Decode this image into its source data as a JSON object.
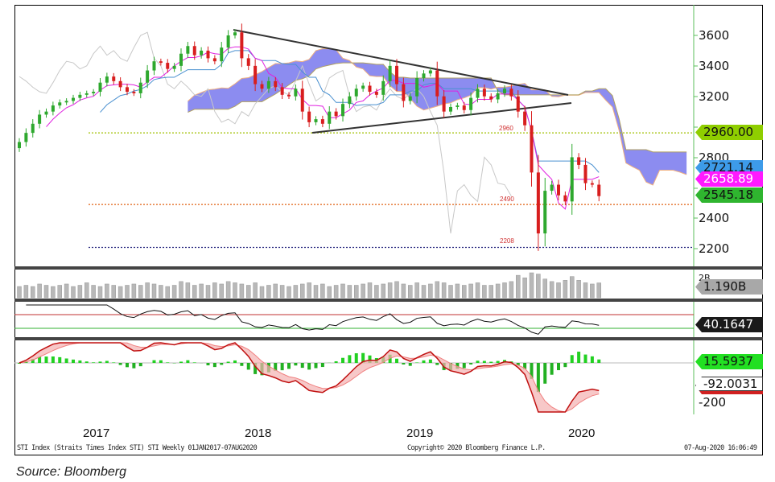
{
  "chart_data": {
    "type": "candlestick",
    "instrument": "STI Index (Straits Times Index STI) STI  Weekly 01JAN2017-07AUG2020",
    "copyright": "Copyright© 2020 Bloomberg Finance L.P.",
    "timestamp": "07-Aug-2020 16:06:49",
    "source": "Source: Bloomberg",
    "x_tick_labels": [
      "2017",
      "2018",
      "2019",
      "2020"
    ],
    "y_tick_labels": [
      "3600",
      "3400",
      "3200",
      "2800",
      "2400",
      "2200"
    ],
    "ylim": [
      2150,
      3680
    ],
    "grid": false,
    "sampling": "semi-monthly closes (approximate, read from chart)",
    "closes": [
      2900,
      2960,
      3020,
      3080,
      3100,
      3140,
      3160,
      3170,
      3190,
      3210,
      3220,
      3230,
      3290,
      3330,
      3300,
      3260,
      3230,
      3220,
      3290,
      3370,
      3430,
      3420,
      3380,
      3400,
      3480,
      3530,
      3470,
      3500,
      3450,
      3430,
      3520,
      3600,
      3620,
      3450,
      3400,
      3280,
      3250,
      3300,
      3260,
      3210,
      3200,
      3250,
      3100,
      3030,
      3050,
      3020,
      3100,
      3070,
      3150,
      3200,
      3250,
      3270,
      3230,
      3210,
      3300,
      3400,
      3280,
      3170,
      3200,
      3320,
      3350,
      3370,
      3200,
      3100,
      3130,
      3140,
      3110,
      3190,
      3250,
      3200,
      3180,
      3220,
      3250,
      3200,
      3100,
      3010,
      2700,
      2300,
      2580,
      2620,
      2550,
      2510,
      2800,
      2750,
      2630,
      2620,
      2545
    ],
    "volume_billions": [
      0.9,
      1.0,
      0.9,
      1.1,
      1.0,
      0.9,
      1.0,
      1.1,
      0.9,
      1.0,
      1.2,
      1.0,
      0.9,
      1.1,
      1.0,
      0.9,
      1.0,
      1.1,
      1.0,
      1.2,
      1.1,
      1.0,
      0.9,
      1.0,
      1.3,
      1.2,
      1.0,
      1.1,
      1.0,
      1.2,
      1.1,
      1.3,
      1.2,
      1.1,
      1.0,
      1.2,
      0.9,
      1.0,
      1.1,
      1.0,
      0.9,
      1.0,
      1.1,
      1.2,
      1.0,
      1.1,
      0.9,
      1.0,
      1.1,
      1.0,
      1.0,
      1.1,
      1.2,
      1.0,
      1.1,
      1.2,
      1.3,
      1.1,
      1.0,
      1.2,
      1.0,
      1.1,
      1.3,
      1.2,
      1.0,
      1.1,
      1.0,
      1.1,
      1.2,
      1.0,
      1.0,
      1.1,
      1.2,
      1.3,
      1.8,
      1.6,
      2.0,
      1.9,
      1.5,
      1.3,
      1.2,
      1.4,
      1.7,
      1.4,
      1.2,
      1.1,
      1.19
    ],
    "levels": [
      {
        "label": "2960",
        "value": 2960,
        "color": "#a0c000"
      },
      {
        "label": "2490",
        "value": 2490,
        "color": "#e06010"
      },
      {
        "label": "2208",
        "value": 2208,
        "color": "#2a2a80"
      }
    ],
    "price_tags": [
      {
        "label": "2960.00",
        "value": 2960,
        "bg": "#8fce00",
        "fg": "#111"
      },
      {
        "label": "2721.14",
        "value": 2721.14,
        "bg": "#3d9be9",
        "fg": "#111"
      },
      {
        "label": "2658.89",
        "value": 2658.89,
        "bg": "#ff1aff",
        "fg": "#fff"
      },
      {
        "label": "2545.18",
        "value": 2545.18,
        "bg": "#2fb52f",
        "fg": "#111"
      }
    ],
    "volume_panel": {
      "tick": "2B",
      "tag": "1.190B"
    },
    "rsi_panel": {
      "tag": "40.1647",
      "upper": 70,
      "lower": 30
    },
    "macd_panel": {
      "tag_signal": "15.5937",
      "tag_macd": "-92.0031",
      "tick": "-200"
    },
    "colors": {
      "up": "#2ea82e",
      "down": "#d81e1e",
      "cloud": "#8c8cf0",
      "tenkan": "#e020e0",
      "kijun": "#4a90d0",
      "chikou": "#c8c8c8",
      "trendline": "#333333"
    }
  }
}
